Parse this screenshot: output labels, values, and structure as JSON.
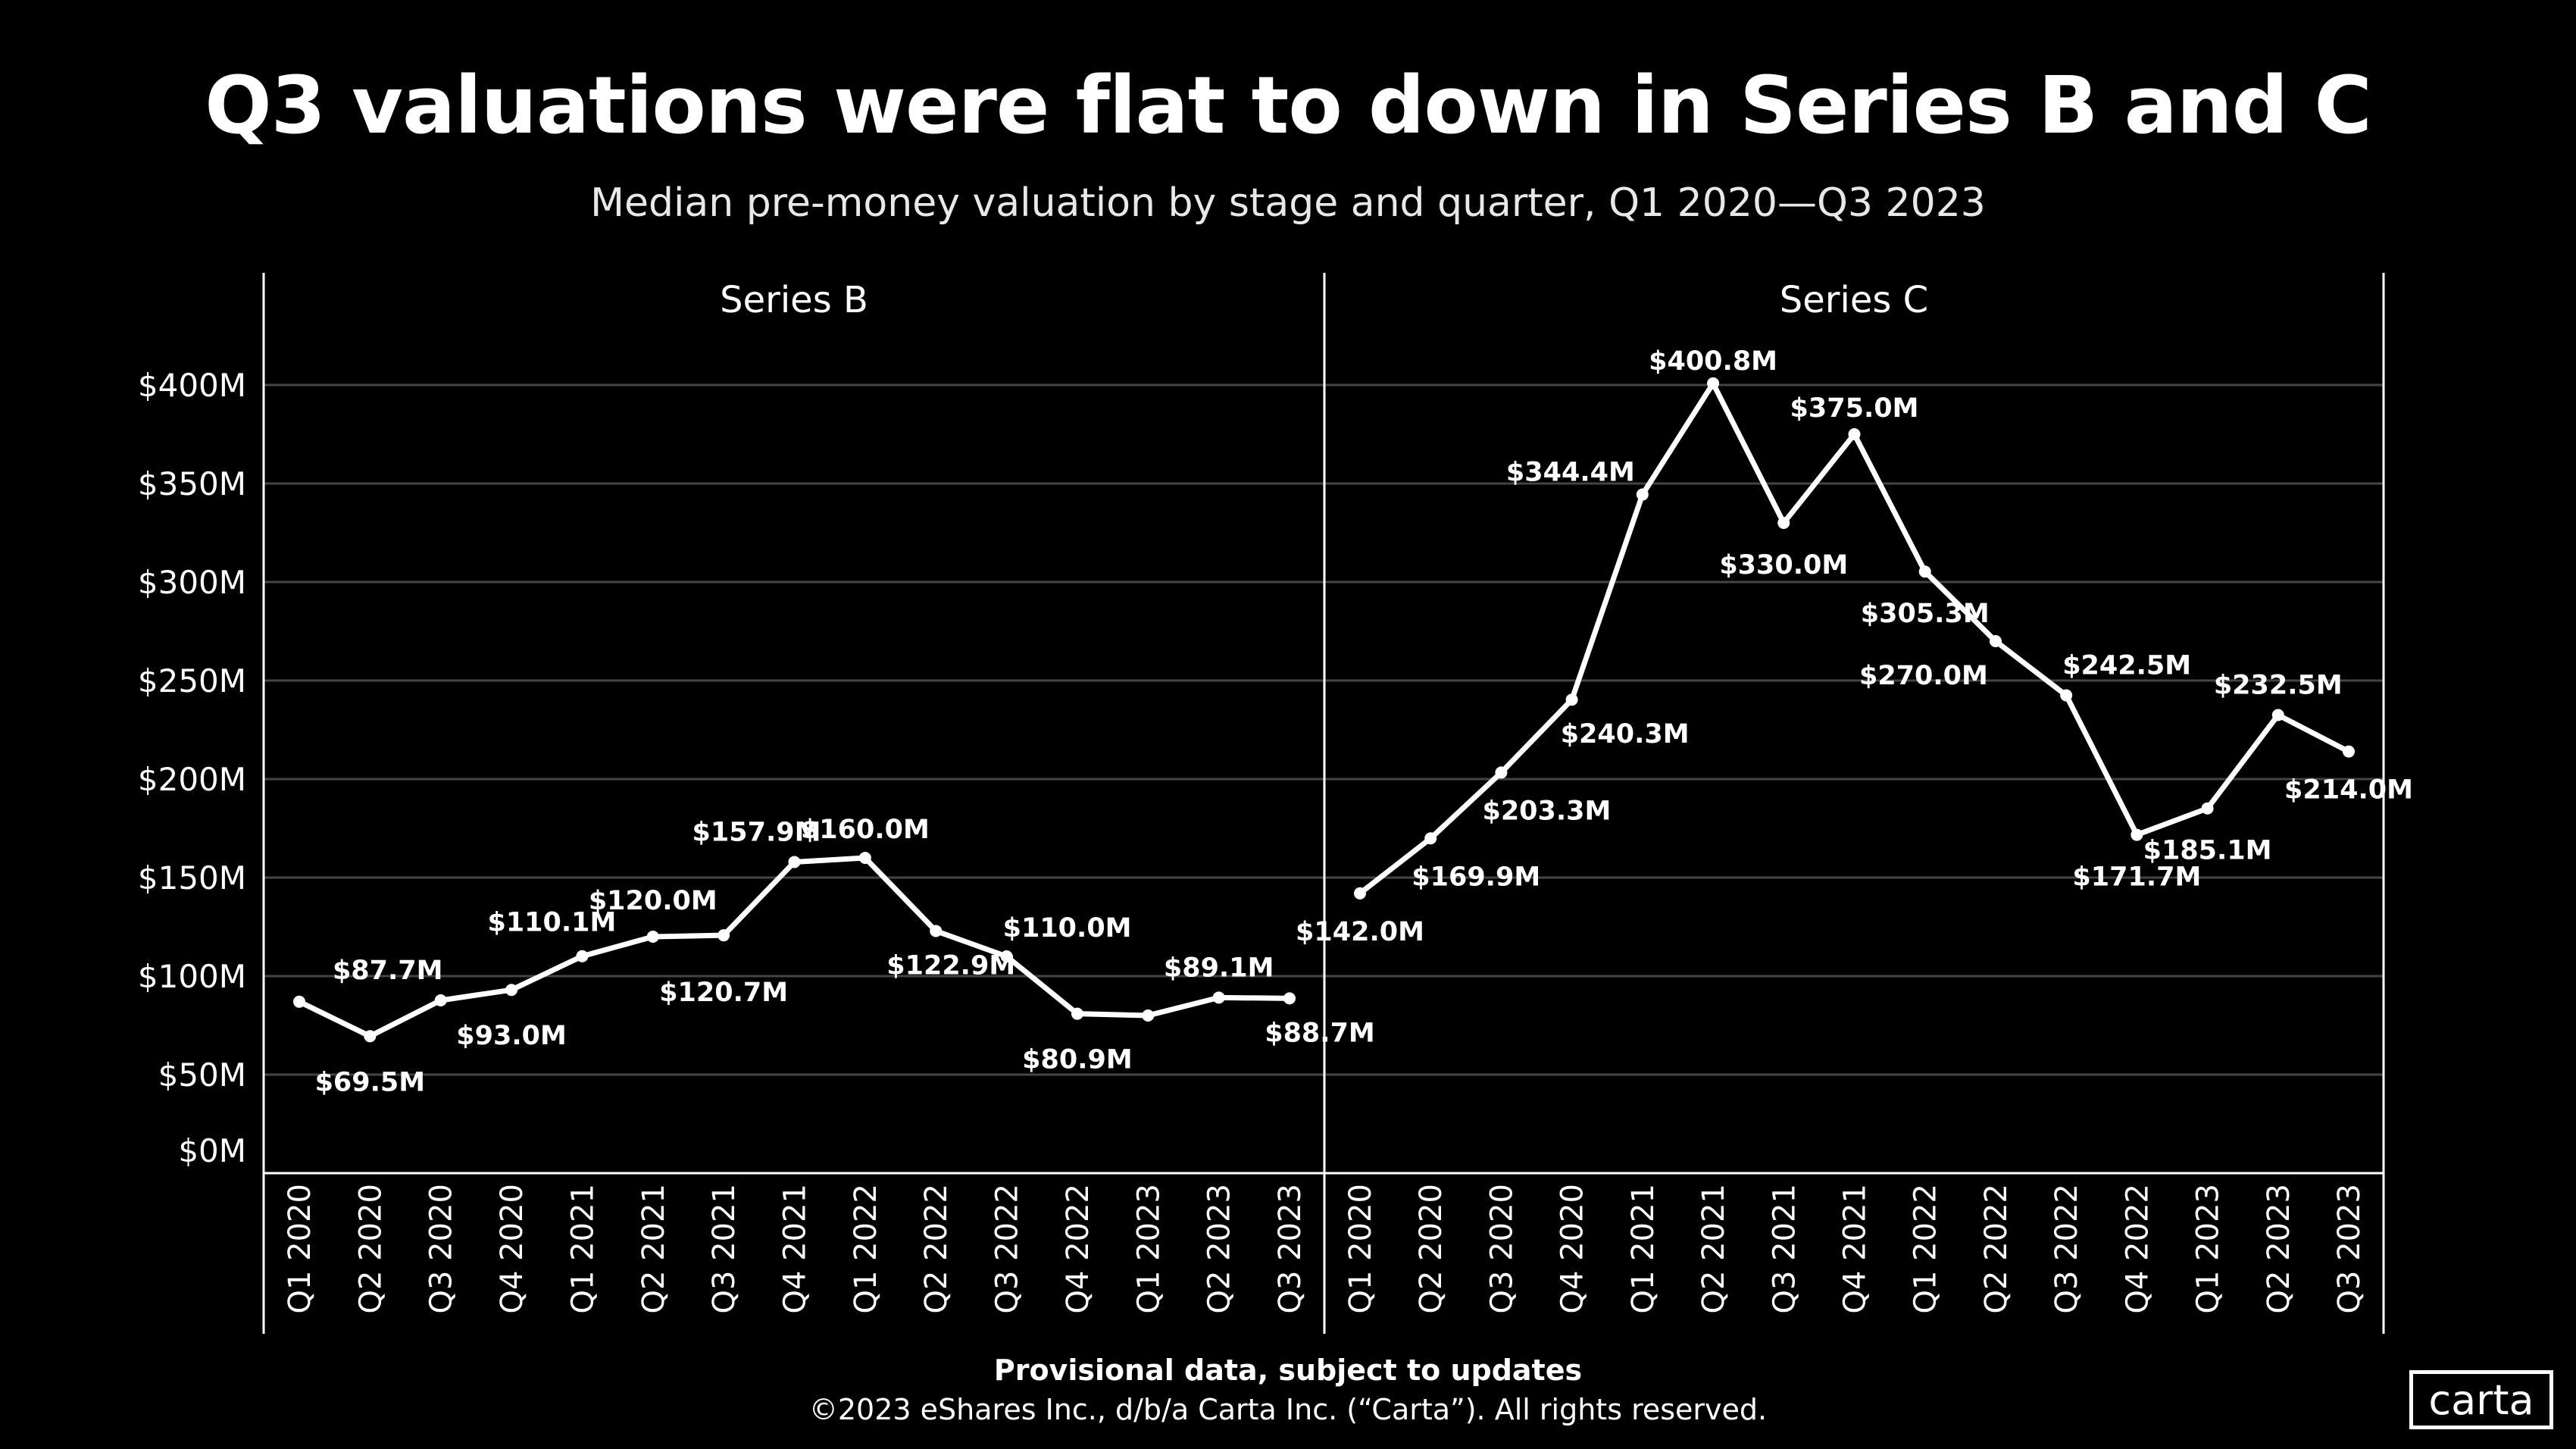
{
  "title": "Q3 valuations were flat to down in Series B and C",
  "subtitle": "Median pre-money valuation by stage and quarter, Q1 2020—Q3 2023",
  "footer_note": "Provisional data, subject to updates",
  "copyright": "©2023 eShares Inc., d/b/a Carta Inc. (“Carta”). All rights reserved.",
  "logo_text": "carta",
  "colors": {
    "background": "#000000",
    "line": "#ffffff",
    "grid": "#444444"
  },
  "chart_data": {
    "type": "line",
    "ylim": [
      0,
      400
    ],
    "y_ticks": [
      0,
      50,
      100,
      150,
      200,
      250,
      300,
      350,
      400
    ],
    "y_tick_labels": [
      "$0M",
      "$50M",
      "$100M",
      "$150M",
      "$200M",
      "$250M",
      "$300M",
      "$350M",
      "$400M"
    ],
    "grid": true,
    "categories": [
      "Q1 2020",
      "Q2 2020",
      "Q3 2020",
      "Q4 2020",
      "Q1 2021",
      "Q2 2021",
      "Q3 2021",
      "Q4 2021",
      "Q1 2022",
      "Q2 2022",
      "Q3 2022",
      "Q4 2022",
      "Q1 2023",
      "Q2 2023",
      "Q3 2023"
    ],
    "panels": [
      {
        "title": "Series B",
        "values": [
          87.0,
          69.5,
          87.7,
          93.0,
          110.1,
          120.0,
          120.7,
          157.9,
          160.0,
          122.9,
          110.0,
          80.9,
          80.0,
          89.1,
          88.7
        ],
        "labels": [
          null,
          "$69.5M",
          "$87.7M",
          "$93.0M",
          "$110.1M",
          "$120.0M",
          "$120.7M",
          "$157.9M",
          "$160.0M",
          "$122.9M",
          "$110.0M",
          "$80.9M",
          null,
          "$89.1M",
          "$88.7M"
        ]
      },
      {
        "title": "Series C",
        "values": [
          142.0,
          169.9,
          203.3,
          240.3,
          344.4,
          400.8,
          330.0,
          375.0,
          305.3,
          270.0,
          242.5,
          171.7,
          185.1,
          232.5,
          214.0
        ],
        "labels": [
          "$142.0M",
          "$169.9M",
          "$203.3M",
          "$240.3M",
          "$344.4M",
          "$400.8M",
          "$330.0M",
          "$375.0M",
          "$305.3M",
          "$270.0M",
          "$242.5M",
          "$171.7M",
          "$185.1M",
          "$232.5M",
          "$214.0M"
        ]
      }
    ]
  }
}
